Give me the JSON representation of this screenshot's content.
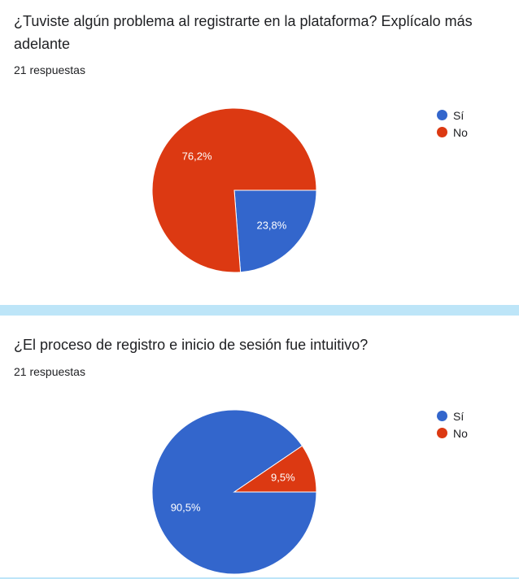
{
  "chart_data": [
    {
      "type": "pie",
      "title": "¿Tuviste algún problema al registrarte en la plataforma? Explícalo más adelante",
      "subtitle": "21 respuestas",
      "categories": [
        "Sí",
        "No"
      ],
      "values": [
        23.8,
        76.2
      ],
      "labels": [
        "23,8%",
        "76,2%"
      ],
      "colors": [
        "#3366cc",
        "#dc3912"
      ],
      "legend_position": "right"
    },
    {
      "type": "pie",
      "title": "¿El proceso de registro e inicio de sesión fue intuitivo?",
      "subtitle": "21 respuestas",
      "categories": [
        "Sí",
        "No"
      ],
      "values": [
        90.5,
        9.5
      ],
      "labels": [
        "90,5%",
        "9,5%"
      ],
      "colors": [
        "#3366cc",
        "#dc3912"
      ],
      "legend_position": "right"
    }
  ]
}
